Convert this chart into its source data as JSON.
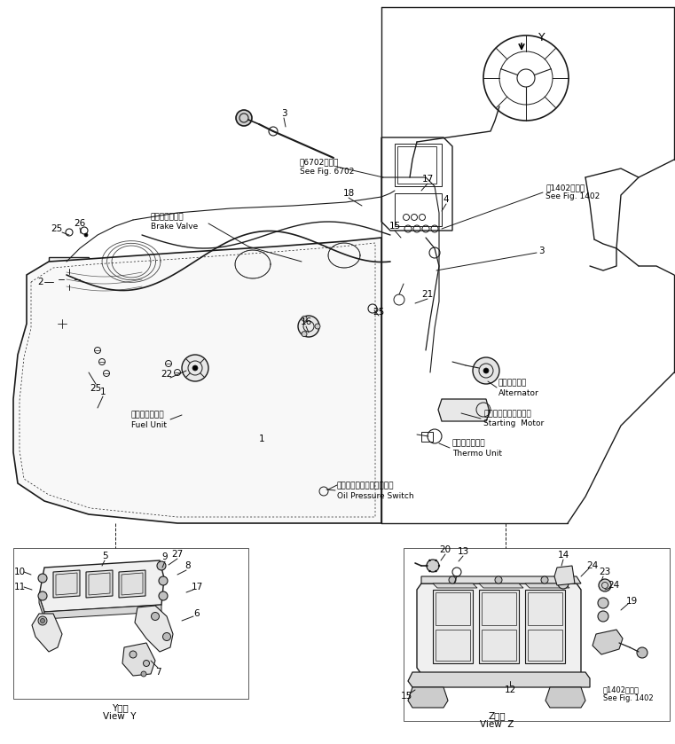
{
  "background_color": "#ffffff",
  "line_color": "#1a1a1a",
  "labels": {
    "brake_valve_jp": "ブレーキバルブ",
    "brake_valve_en": "Brake Valve",
    "fuel_unit_jp": "フェルユニット",
    "fuel_unit_en": "Fuel Unit",
    "alternator_jp": "オルタネータ",
    "alternator_en": "Alternator",
    "starting_motor_jp": "スターティングモータ",
    "starting_motor_en": "Starting  Motor",
    "thermo_unit_jp": "サーモユニット",
    "thermo_unit_en": "Thermo Unit",
    "oil_pressure_jp": "オイルプレッシャスイッチ",
    "oil_pressure_en": "Oil Pressure Switch",
    "see_fig_6702_jp": "第6702図参照",
    "see_fig_6702_en": "See Fig. 6702",
    "see_fig_1402_jp": "第1402図参照",
    "see_fig_1402_en": "See Fig. 1402",
    "view_y_jp": "Y　横",
    "view_y_en": "View  Y",
    "view_z_jp": "Z　横",
    "view_z_en": "View  Z"
  },
  "figsize": [
    7.61,
    8.39
  ],
  "dpi": 100
}
